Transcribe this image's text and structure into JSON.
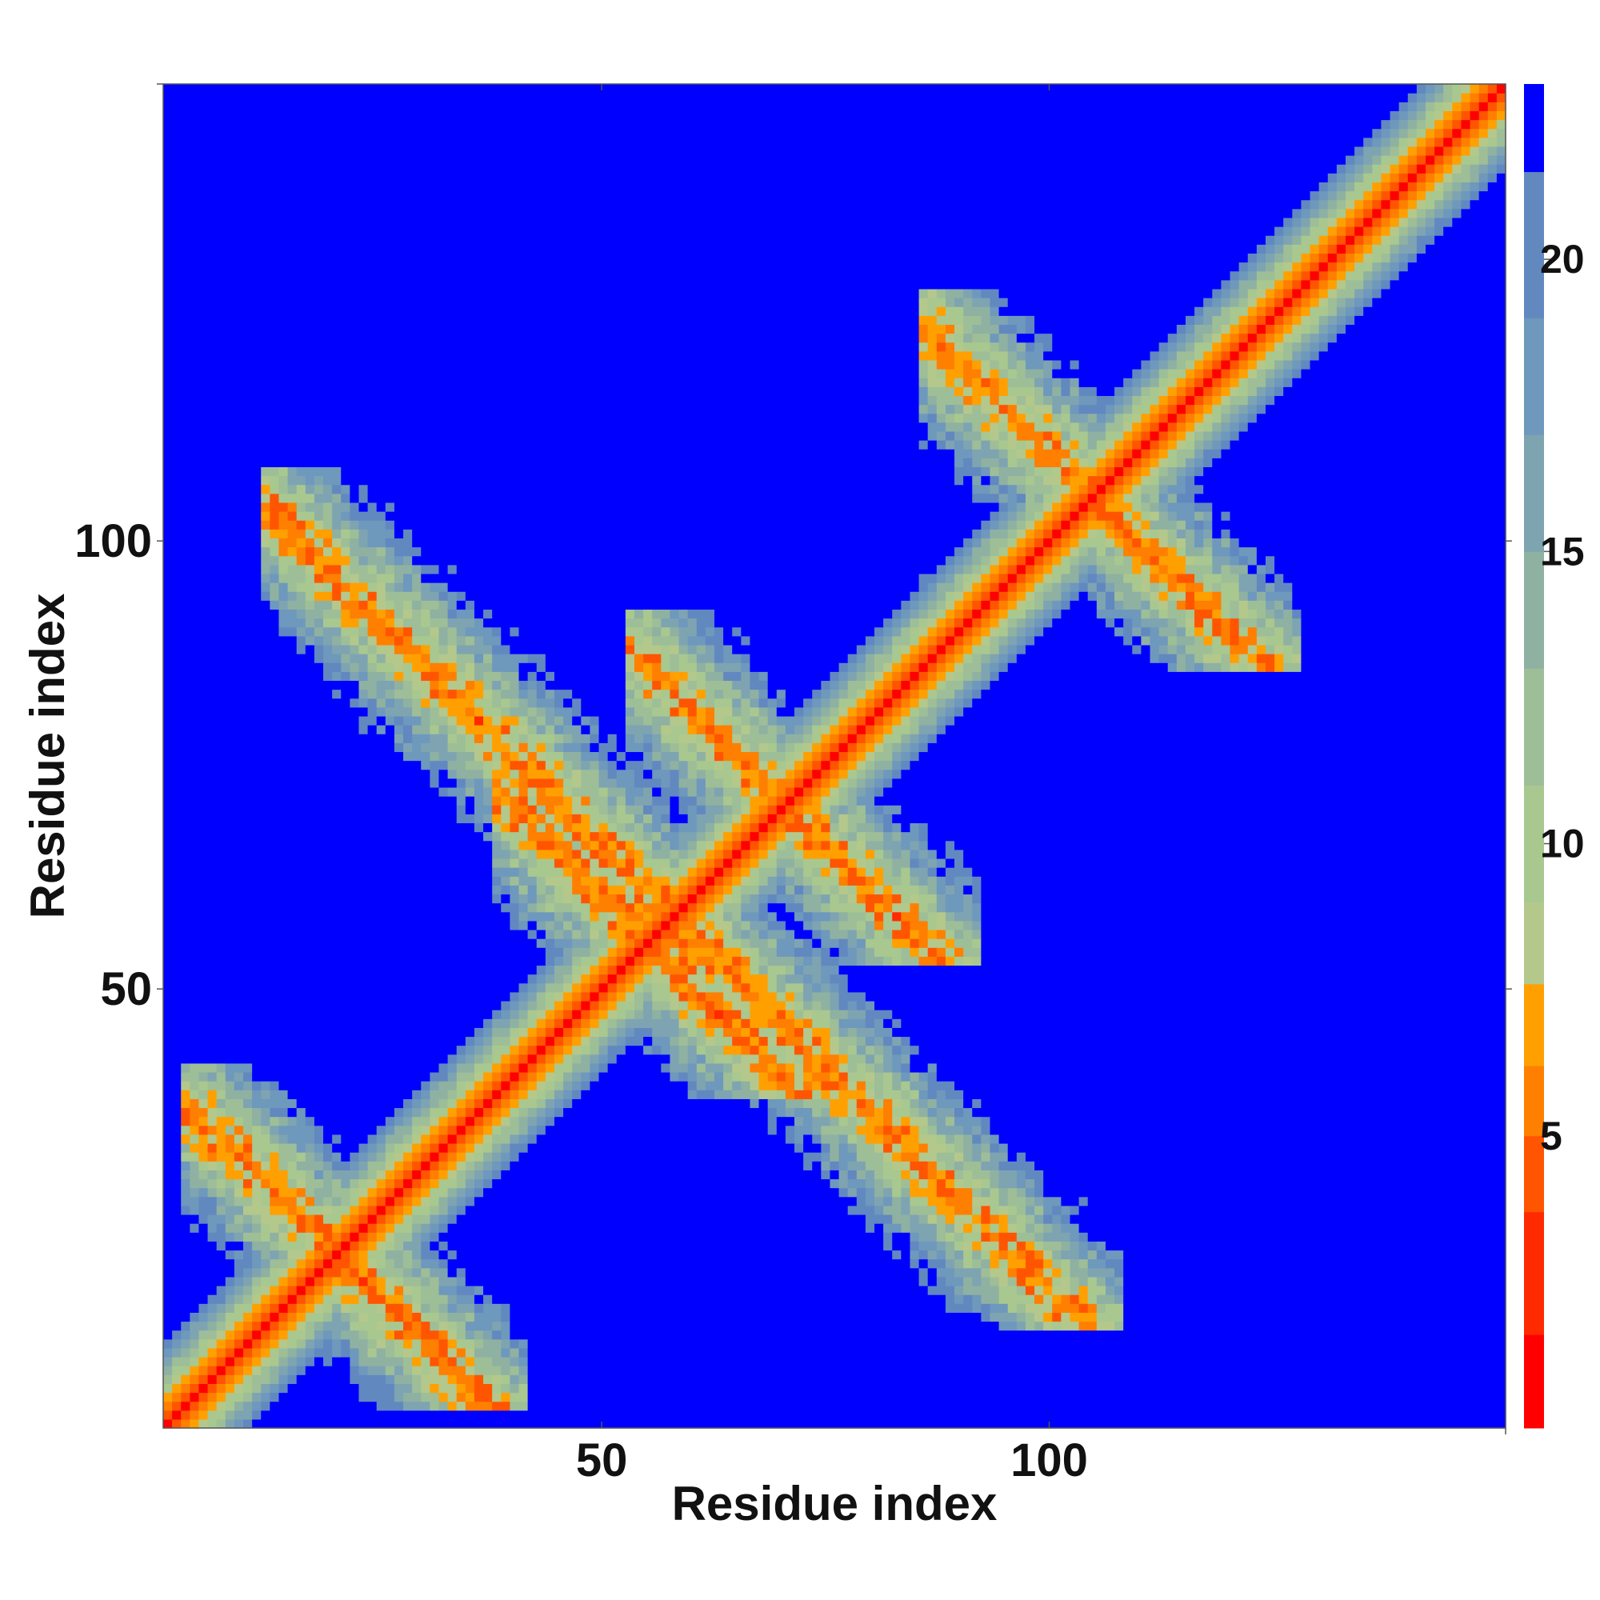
{
  "chart_data": {
    "type": "heatmap",
    "title": "",
    "xlabel": "Residue index",
    "ylabel": "Residue index",
    "xlim": [
      1,
      151
    ],
    "ylim": [
      1,
      151
    ],
    "xticks": [
      50,
      100
    ],
    "yticks": [
      50,
      100
    ],
    "n_residues": 151,
    "colorbar": {
      "range": [
        0,
        23
      ],
      "ticks": [
        5,
        10,
        15,
        20
      ],
      "colors": [
        {
          "max": 1.6,
          "color": "#ff0000"
        },
        {
          "max": 3.7,
          "color": "#ff2a00"
        },
        {
          "max": 5.0,
          "color": "#ff5500"
        },
        {
          "max": 6.2,
          "color": "#ff7f00"
        },
        {
          "max": 7.6,
          "color": "#ffa000"
        },
        {
          "max": 9.0,
          "color": "#b4c88c"
        },
        {
          "max": 11.0,
          "color": "#a8c890"
        },
        {
          "max": 13.0,
          "color": "#9ebe98"
        },
        {
          "max": 15.0,
          "color": "#8fb1a2"
        },
        {
          "max": 17.0,
          "color": "#7ea4b2"
        },
        {
          "max": 19.0,
          "color": "#6e98bc"
        },
        {
          "max": 21.5,
          "color": "#6288c0"
        },
        {
          "max": 999,
          "color": "#0000ff"
        }
      ]
    },
    "contact_bands": [
      {
        "start": 5,
        "end": 35,
        "width": 8
      },
      {
        "start": 40,
        "end": 70,
        "width": 8
      },
      {
        "start": 55,
        "end": 86,
        "width": 8
      },
      {
        "start": 88,
        "end": 122,
        "width": 8
      },
      {
        "start": 14,
        "end": 102,
        "width": 8
      }
    ]
  }
}
